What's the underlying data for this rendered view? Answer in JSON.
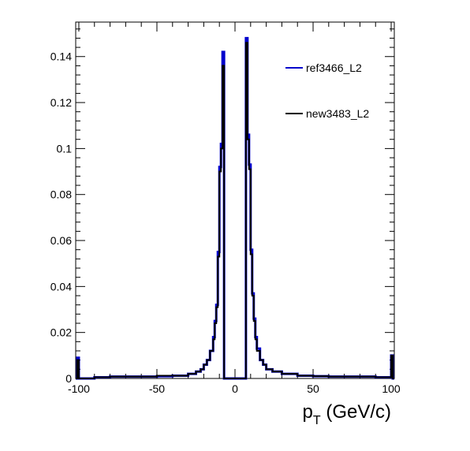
{
  "chart_data": {
    "type": "histogram",
    "title": "",
    "xlabel": "p",
    "xlabel_subscript": "T",
    "xlabel_unit": " (GeV/c)",
    "ylabel": "",
    "xlim": [
      -102,
      102
    ],
    "ylim": [
      0,
      0.155
    ],
    "grid": false,
    "legend_position": "top-right",
    "x_ticks": [
      -100,
      -50,
      0,
      50,
      100
    ],
    "x_tick_labels": [
      "-100",
      "-50",
      "0",
      "50",
      "100"
    ],
    "y_ticks": [
      0,
      0.02,
      0.04,
      0.06,
      0.08,
      0.1,
      0.12,
      0.14
    ],
    "y_tick_labels": [
      "0",
      "0.02",
      "0.04",
      "0.06",
      "0.08",
      "0.1",
      "0.12",
      "0.14"
    ],
    "series": [
      {
        "name": "ref3466_L2",
        "color": "#0000cc",
        "points": [
          [
            -102,
            0.0
          ],
          [
            -101,
            0.009
          ],
          [
            -100,
            0.0
          ],
          [
            -90,
            0.0005
          ],
          [
            -80,
            0.0008
          ],
          [
            -70,
            0.0008
          ],
          [
            -60,
            0.0008
          ],
          [
            -50,
            0.001
          ],
          [
            -40,
            0.0012
          ],
          [
            -30,
            0.002
          ],
          [
            -25,
            0.003
          ],
          [
            -22,
            0.004
          ],
          [
            -20,
            0.006
          ],
          [
            -18,
            0.008
          ],
          [
            -16,
            0.012
          ],
          [
            -14,
            0.018
          ],
          [
            -13,
            0.025
          ],
          [
            -12,
            0.032
          ],
          [
            -11,
            0.055
          ],
          [
            -10,
            0.092
          ],
          [
            -9,
            0.102
          ],
          [
            -8,
            0.142
          ],
          [
            -7,
            0.0
          ],
          [
            -6,
            0.0
          ],
          [
            6,
            0.0
          ],
          [
            7,
            0.148
          ],
          [
            8,
            0.106
          ],
          [
            9,
            0.093
          ],
          [
            10,
            0.056
          ],
          [
            11,
            0.037
          ],
          [
            12,
            0.026
          ],
          [
            13,
            0.018
          ],
          [
            14,
            0.013
          ],
          [
            16,
            0.008
          ],
          [
            18,
            0.006
          ],
          [
            20,
            0.004
          ],
          [
            24,
            0.003
          ],
          [
            30,
            0.002
          ],
          [
            40,
            0.0012
          ],
          [
            50,
            0.001
          ],
          [
            60,
            0.0008
          ],
          [
            70,
            0.0008
          ],
          [
            80,
            0.0008
          ],
          [
            90,
            0.0005
          ],
          [
            99,
            0.0005
          ],
          [
            100,
            0.01
          ],
          [
            101,
            0.0
          ],
          [
            102,
            0.0
          ]
        ]
      },
      {
        "name": "new3483_L2",
        "color": "#000000",
        "points": [
          [
            -102,
            0.0
          ],
          [
            -101,
            0.008
          ],
          [
            -100,
            0.0
          ],
          [
            -90,
            0.0005
          ],
          [
            -80,
            0.0008
          ],
          [
            -70,
            0.0008
          ],
          [
            -60,
            0.0008
          ],
          [
            -50,
            0.0012
          ],
          [
            -40,
            0.0012
          ],
          [
            -30,
            0.002
          ],
          [
            -25,
            0.003
          ],
          [
            -22,
            0.004
          ],
          [
            -20,
            0.006
          ],
          [
            -18,
            0.008
          ],
          [
            -16,
            0.012
          ],
          [
            -14,
            0.017
          ],
          [
            -13,
            0.024
          ],
          [
            -12,
            0.031
          ],
          [
            -11,
            0.053
          ],
          [
            -10,
            0.09
          ],
          [
            -9,
            0.1
          ],
          [
            -8,
            0.136
          ],
          [
            -7,
            0.0
          ],
          [
            -6,
            0.0
          ],
          [
            6,
            0.0
          ],
          [
            7,
            0.146
          ],
          [
            8,
            0.104
          ],
          [
            9,
            0.091
          ],
          [
            10,
            0.054
          ],
          [
            11,
            0.036
          ],
          [
            12,
            0.025
          ],
          [
            13,
            0.017
          ],
          [
            14,
            0.012
          ],
          [
            16,
            0.008
          ],
          [
            18,
            0.006
          ],
          [
            20,
            0.004
          ],
          [
            24,
            0.003
          ],
          [
            30,
            0.002
          ],
          [
            40,
            0.0012
          ],
          [
            50,
            0.001
          ],
          [
            60,
            0.0008
          ],
          [
            70,
            0.0008
          ],
          [
            80,
            0.0008
          ],
          [
            90,
            0.0005
          ],
          [
            99,
            0.0005
          ],
          [
            100,
            0.01
          ],
          [
            101,
            0.0
          ],
          [
            102,
            0.0
          ]
        ]
      }
    ]
  }
}
